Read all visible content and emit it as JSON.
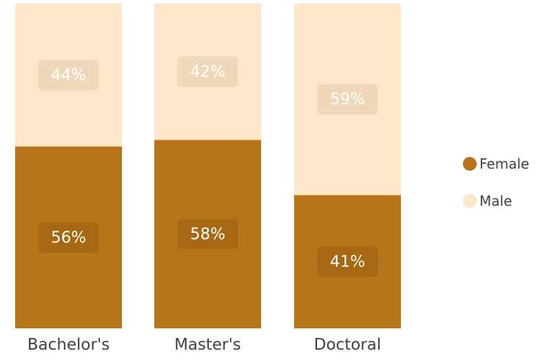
{
  "chart_data": {
    "type": "bar",
    "stacked": true,
    "normalized_percent": true,
    "title": "",
    "xlabel": "",
    "ylabel": "",
    "ylim": [
      0,
      100
    ],
    "grid": false,
    "legend_position": "right",
    "categories": [
      "Bachelor's",
      "Master's",
      "Doctoral"
    ],
    "series": [
      {
        "name": "Female",
        "color": "#b87418",
        "values": [
          56,
          58,
          41
        ],
        "labels": [
          "56%",
          "58%",
          "41%"
        ]
      },
      {
        "name": "Male",
        "color": "#fde6c9",
        "values": [
          44,
          42,
          59
        ],
        "labels": [
          "44%",
          "42%",
          "59%"
        ]
      }
    ]
  }
}
